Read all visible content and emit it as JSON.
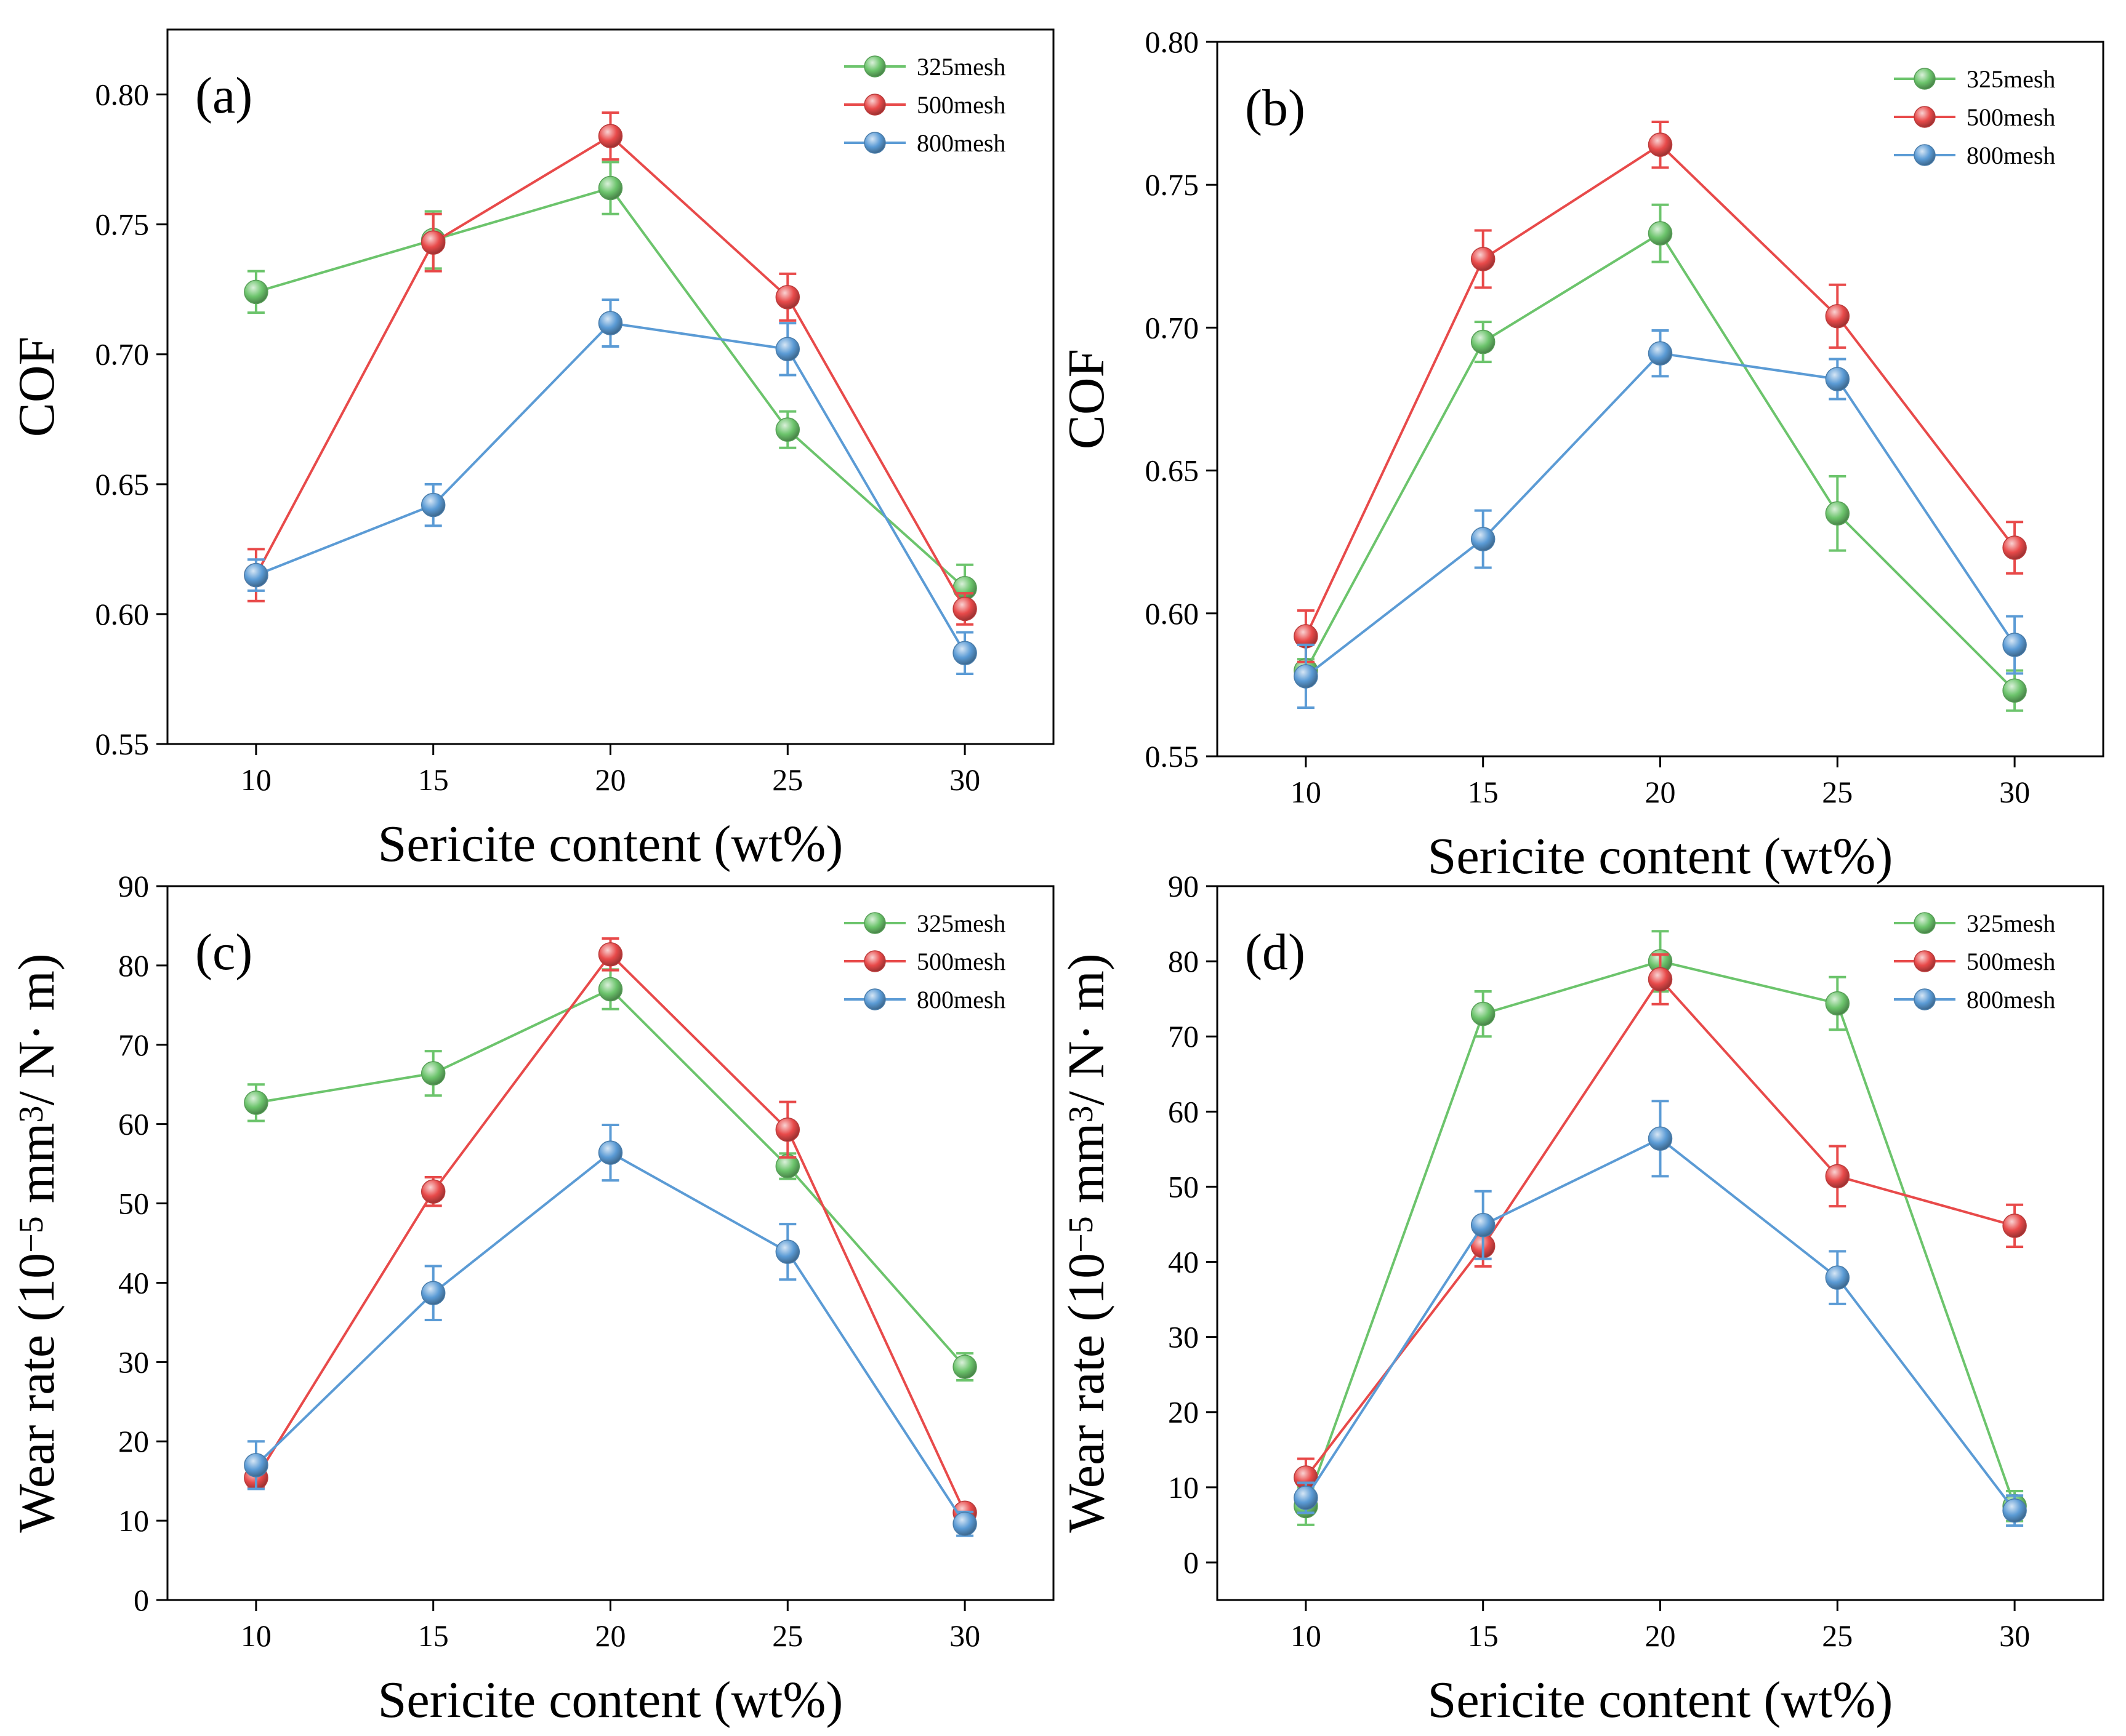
{
  "chart_data": [
    {
      "type": "line",
      "panel_label": "(a)",
      "xlabel": "Sericite content (wt%)",
      "ylabel": "COF",
      "ylabel_parts": null,
      "x": [
        10,
        15,
        20,
        25,
        30
      ],
      "xlim": [
        7.5,
        32.5
      ],
      "ylim": [
        0.55,
        0.825
      ],
      "yticks": [
        0.55,
        0.6,
        0.65,
        0.7,
        0.75,
        0.8
      ],
      "ytick_labels": [
        "0.55",
        "0.60",
        "0.65",
        "0.70",
        "0.75",
        "0.80"
      ],
      "xtick_labels": [
        "10",
        "15",
        "20",
        "25",
        "30"
      ],
      "legend": "top-right",
      "series": [
        {
          "name": "325mesh",
          "color": "#6cc46c",
          "values": [
            0.724,
            0.744,
            0.764,
            0.671,
            0.61
          ],
          "errors": [
            0.008,
            0.011,
            0.01,
            0.007,
            0.009
          ]
        },
        {
          "name": "500mesh",
          "color": "#e84a4a",
          "values": [
            0.615,
            0.743,
            0.784,
            0.722,
            0.602
          ],
          "errors": [
            0.01,
            0.011,
            0.009,
            0.009,
            0.006
          ]
        },
        {
          "name": "800mesh",
          "color": "#5b9bd5",
          "values": [
            0.615,
            0.642,
            0.712,
            0.702,
            0.585
          ],
          "errors": [
            0.006,
            0.008,
            0.009,
            0.01,
            0.008
          ]
        }
      ]
    },
    {
      "type": "line",
      "panel_label": "(b)",
      "xlabel": "Sericite content (wt%)",
      "ylabel": "COF",
      "ylabel_parts": null,
      "x": [
        10,
        15,
        20,
        25,
        30
      ],
      "xlim": [
        7.5,
        32.5
      ],
      "ylim": [
        0.55,
        0.8
      ],
      "yticks": [
        0.55,
        0.6,
        0.65,
        0.7,
        0.75,
        0.8
      ],
      "ytick_labels": [
        "0.55",
        "0.60",
        "0.65",
        "0.70",
        "0.75",
        "0.80"
      ],
      "xtick_labels": [
        "10",
        "15",
        "20",
        "25",
        "30"
      ],
      "legend": "top-right",
      "series": [
        {
          "name": "325mesh",
          "color": "#6cc46c",
          "values": [
            0.58,
            0.695,
            0.733,
            0.635,
            0.573
          ],
          "errors": [
            0.004,
            0.007,
            0.01,
            0.013,
            0.007
          ]
        },
        {
          "name": "500mesh",
          "color": "#e84a4a",
          "values": [
            0.592,
            0.724,
            0.764,
            0.704,
            0.623
          ],
          "errors": [
            0.009,
            0.01,
            0.008,
            0.011,
            0.009
          ]
        },
        {
          "name": "800mesh",
          "color": "#5b9bd5",
          "values": [
            0.578,
            0.626,
            0.691,
            0.682,
            0.589
          ],
          "errors": [
            0.011,
            0.01,
            0.008,
            0.007,
            0.01
          ]
        }
      ]
    },
    {
      "type": "line",
      "panel_label": "(c)",
      "xlabel": "Sericite content (wt%)",
      "ylabel": "Wear rate (10-5 mm3/ N· m)",
      "ylabel_parts": [
        "Wear rate (10",
        "−5",
        " mm",
        "3",
        "/ N· m)"
      ],
      "x": [
        10,
        15,
        20,
        25,
        30
      ],
      "xlim": [
        7.5,
        32.5
      ],
      "ylim": [
        0,
        90
      ],
      "yticks": [
        0,
        10,
        20,
        30,
        40,
        50,
        60,
        70,
        80,
        90
      ],
      "ytick_labels": [
        "0",
        "10",
        "20",
        "30",
        "40",
        "50",
        "60",
        "70",
        "80",
        "90"
      ],
      "xtick_labels": [
        "10",
        "15",
        "20",
        "25",
        "30"
      ],
      "legend": "top-right",
      "series": [
        {
          "name": "325mesh",
          "color": "#6cc46c",
          "values": [
            62.7,
            66.4,
            77.0,
            54.7,
            29.4
          ],
          "errors": [
            2.3,
            2.8,
            2.5,
            1.6,
            1.7
          ]
        },
        {
          "name": "500mesh",
          "color": "#e84a4a",
          "values": [
            15.4,
            51.5,
            81.4,
            59.3,
            11.0
          ],
          "errors": [
            1.2,
            1.8,
            2.0,
            3.5,
            0.9
          ]
        },
        {
          "name": "800mesh",
          "color": "#5b9bd5",
          "values": [
            17.0,
            38.7,
            56.4,
            43.9,
            9.6
          ],
          "errors": [
            3.0,
            3.4,
            3.5,
            3.5,
            1.5
          ]
        }
      ]
    },
    {
      "type": "line",
      "panel_label": "(d)",
      "xlabel": "Sericite content (wt%)",
      "ylabel": "Wear rate (10-5 mm3/ N· m)",
      "ylabel_parts": [
        "Wear rate (10",
        "−5",
        " mm",
        "3",
        "/ N· m)"
      ],
      "x": [
        10,
        15,
        20,
        25,
        30
      ],
      "xlim": [
        7.5,
        32.5
      ],
      "ylim": [
        -5,
        90
      ],
      "yticks": [
        0,
        10,
        20,
        30,
        40,
        50,
        60,
        70,
        80,
        90
      ],
      "ytick_labels": [
        "0",
        "10",
        "20",
        "30",
        "40",
        "50",
        "60",
        "70",
        "80",
        "90"
      ],
      "xtick_labels": [
        "10",
        "15",
        "20",
        "25",
        "30"
      ],
      "legend": "top-right",
      "series": [
        {
          "name": "325mesh",
          "color": "#6cc46c",
          "values": [
            7.5,
            73.0,
            80.0,
            74.4,
            7.5
          ],
          "errors": [
            2.5,
            3.0,
            4.0,
            3.5,
            2.0
          ]
        },
        {
          "name": "500mesh",
          "color": "#e84a4a",
          "values": [
            11.3,
            42.1,
            77.6,
            51.4,
            44.8
          ],
          "errors": [
            2.5,
            2.7,
            3.3,
            4.0,
            2.8
          ]
        },
        {
          "name": "800mesh",
          "color": "#5b9bd5",
          "values": [
            8.6,
            44.9,
            56.4,
            37.9,
            6.9
          ],
          "errors": [
            2.0,
            4.5,
            5.0,
            3.5,
            2.0
          ]
        }
      ]
    }
  ]
}
